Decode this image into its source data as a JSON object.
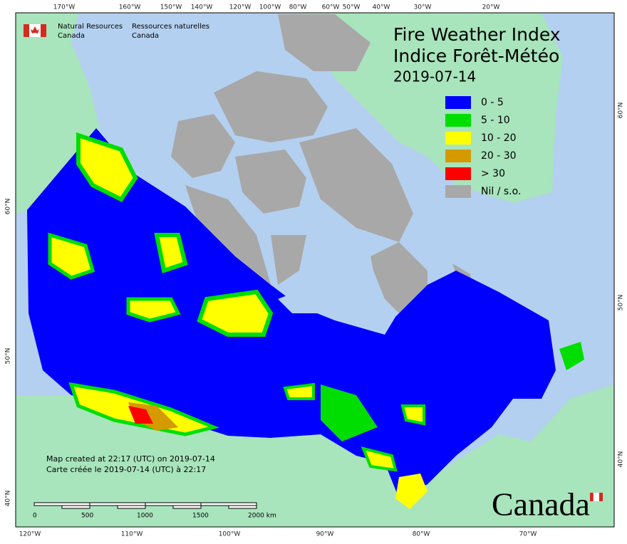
{
  "header": {
    "agency_en": [
      "Natural Resources",
      "Canada"
    ],
    "agency_fr": [
      "Ressources naturelles",
      "Canada"
    ]
  },
  "title": [
    "Fire Weather Index",
    "Indice Forêt-Météo"
  ],
  "date": "2019-07-14",
  "legend": [
    {
      "label": "0 - 5",
      "color": "#0000ff"
    },
    {
      "label": "5 - 10",
      "color": "#00dd00"
    },
    {
      "label": "10 - 20",
      "color": "#ffff00"
    },
    {
      "label": "20 - 30",
      "color": "#d49a00"
    },
    {
      "label": "> 30",
      "color": "#ff0000"
    },
    {
      "label": "Nil / s.o.",
      "color": "#a8a8a8"
    }
  ],
  "top_labels": [
    "170°W",
    "160°W",
    "150°W",
    "140°W",
    "120°W",
    "100°W",
    "80°W",
    "60°W",
    "50°W",
    "40°W",
    "30°W",
    "20°W"
  ],
  "bottom_labels": [
    "120°W",
    "110°W",
    "100°W",
    "90°W",
    "80°W",
    "70°W"
  ],
  "left_labels": [
    "60°N",
    "50°N",
    "40°N"
  ],
  "right_labels": [
    "60°N",
    "50°N",
    "40°N"
  ],
  "scale_bar": [
    "0",
    "500",
    "1000",
    "1500",
    "2000 km"
  ],
  "notes": [
    "Map created at 22:17 (UTC) on 2019-07-14",
    "Carte créée le 2019-07-14 (UTC) à 22:17"
  ],
  "wordmark": "Canada"
}
